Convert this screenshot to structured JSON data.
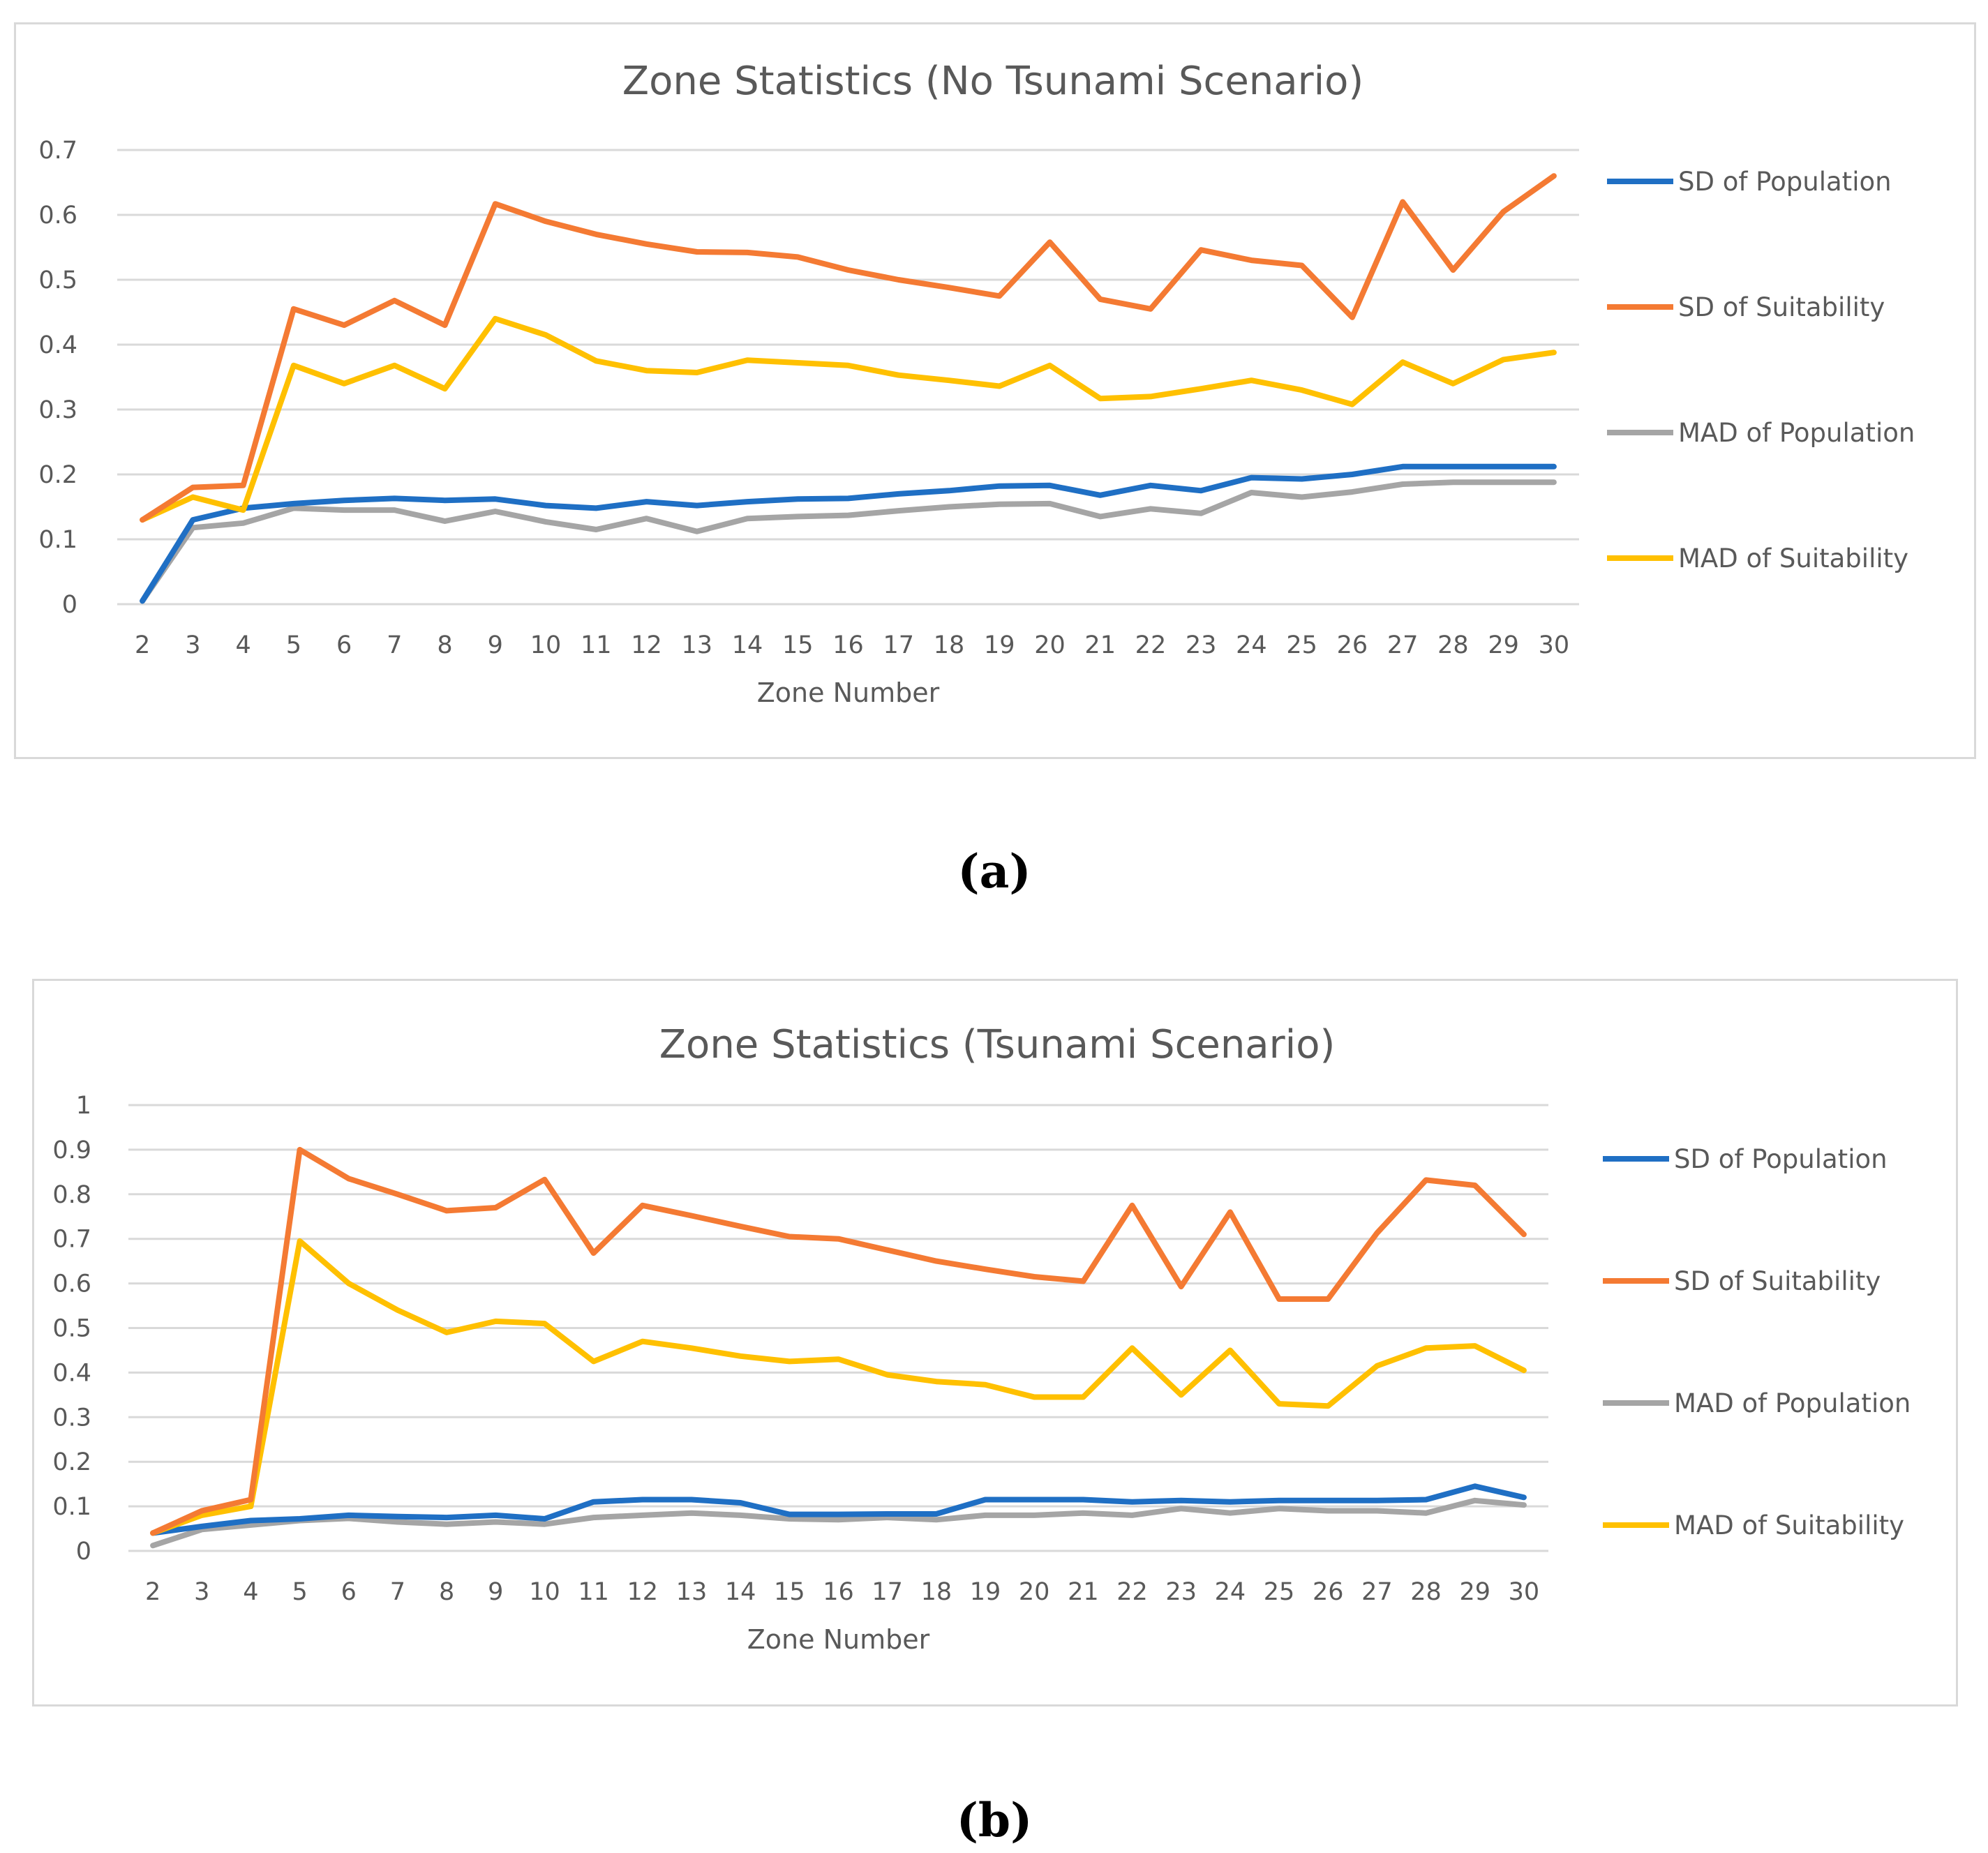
{
  "captions": {
    "a": "(a)",
    "b": "(b)"
  },
  "colors": {
    "sd_population": "#1f6fc4",
    "sd_suitability": "#f47a33",
    "mad_population": "#a5a5a5",
    "mad_suitability": "#ffc000",
    "grid": "#d9d9d9",
    "text": "#595959"
  },
  "chart_data": [
    {
      "type": "line",
      "title": "Zone Statistics (No Tsunami Scenario)",
      "xlabel": "Zone Number",
      "ylabel": "",
      "ylim": [
        0,
        0.7
      ],
      "yticks": [
        "0",
        "0.1",
        "0.2",
        "0.3",
        "0.4",
        "0.5",
        "0.6",
        "0.7"
      ],
      "categories": [
        "2",
        "3",
        "4",
        "5",
        "6",
        "7",
        "8",
        "9",
        "10",
        "11",
        "12",
        "13",
        "14",
        "15",
        "16",
        "17",
        "18",
        "19",
        "20",
        "21",
        "22",
        "23",
        "24",
        "25",
        "26",
        "27",
        "28",
        "29",
        "30"
      ],
      "legend_position": "right",
      "series": [
        {
          "name": "SD of Population",
          "color": "#1f6fc4",
          "values": [
            0.005,
            0.13,
            0.148,
            0.155,
            0.16,
            0.163,
            0.16,
            0.162,
            0.152,
            0.148,
            0.158,
            0.152,
            0.158,
            0.162,
            0.163,
            0.17,
            0.175,
            0.182,
            0.183,
            0.168,
            0.183,
            0.175,
            0.195,
            0.193,
            0.2,
            0.212,
            0.212,
            0.212,
            0.212
          ]
        },
        {
          "name": "SD of Suitability",
          "color": "#f47a33",
          "values": [
            0.13,
            0.18,
            0.183,
            0.455,
            0.43,
            0.468,
            0.43,
            0.617,
            0.59,
            0.57,
            0.555,
            0.543,
            0.542,
            0.535,
            0.515,
            0.5,
            0.488,
            0.475,
            0.558,
            0.47,
            0.455,
            0.546,
            0.53,
            0.522,
            0.442,
            0.62,
            0.515,
            0.605,
            0.66
          ]
        },
        {
          "name": "MAD of Population",
          "color": "#a5a5a5",
          "values": [
            0.005,
            0.118,
            0.125,
            0.148,
            0.145,
            0.145,
            0.128,
            0.143,
            0.127,
            0.115,
            0.132,
            0.112,
            0.132,
            0.135,
            0.137,
            0.144,
            0.15,
            0.154,
            0.155,
            0.135,
            0.147,
            0.14,
            0.172,
            0.165,
            0.173,
            0.185,
            0.188,
            0.188,
            0.188
          ]
        },
        {
          "name": "MAD of Suitability",
          "color": "#ffc000",
          "values": [
            0.13,
            0.165,
            0.145,
            0.368,
            0.34,
            0.368,
            0.332,
            0.44,
            0.415,
            0.375,
            0.36,
            0.357,
            0.376,
            0.372,
            0.368,
            0.353,
            0.345,
            0.336,
            0.368,
            0.317,
            0.32,
            0.332,
            0.345,
            0.33,
            0.308,
            0.373,
            0.34,
            0.377,
            0.388
          ]
        }
      ]
    },
    {
      "type": "line",
      "title": "Zone Statistics (Tsunami Scenario)",
      "xlabel": "Zone Number",
      "ylabel": "",
      "ylim": [
        0,
        1
      ],
      "yticks": [
        "0",
        "0.1",
        "0.2",
        "0.3",
        "0.4",
        "0.5",
        "0.6",
        "0.7",
        "0.8",
        "0.9",
        "1"
      ],
      "categories": [
        "2",
        "3",
        "4",
        "5",
        "6",
        "7",
        "8",
        "9",
        "10",
        "11",
        "12",
        "13",
        "14",
        "15",
        "16",
        "17",
        "18",
        "19",
        "20",
        "21",
        "22",
        "23",
        "24",
        "25",
        "26",
        "27",
        "28",
        "29",
        "30"
      ],
      "legend_position": "right",
      "series": [
        {
          "name": "SD of Population",
          "color": "#1f6fc4",
          "values": [
            0.04,
            0.055,
            0.068,
            0.072,
            0.08,
            0.077,
            0.075,
            0.08,
            0.072,
            0.11,
            0.115,
            0.115,
            0.108,
            0.082,
            0.082,
            0.083,
            0.083,
            0.115,
            0.115,
            0.115,
            0.11,
            0.113,
            0.11,
            0.113,
            0.113,
            0.113,
            0.115,
            0.145,
            0.12
          ]
        },
        {
          "name": "SD of Suitability",
          "color": "#f47a33",
          "values": [
            0.04,
            0.09,
            0.115,
            0.9,
            0.835,
            0.8,
            0.763,
            0.77,
            0.833,
            0.668,
            0.775,
            0.752,
            0.728,
            0.705,
            0.7,
            0.675,
            0.65,
            0.632,
            0.615,
            0.605,
            0.775,
            0.593,
            0.76,
            0.565,
            0.565,
            0.713,
            0.832,
            0.82,
            0.71
          ]
        },
        {
          "name": "MAD of Population",
          "color": "#a5a5a5",
          "values": [
            0.012,
            0.048,
            0.058,
            0.068,
            0.073,
            0.065,
            0.06,
            0.065,
            0.06,
            0.075,
            0.08,
            0.085,
            0.08,
            0.072,
            0.07,
            0.075,
            0.07,
            0.08,
            0.08,
            0.085,
            0.08,
            0.095,
            0.085,
            0.095,
            0.09,
            0.09,
            0.085,
            0.113,
            0.103
          ]
        },
        {
          "name": "MAD of Suitability",
          "color": "#ffc000",
          "values": [
            0.04,
            0.08,
            0.1,
            0.695,
            0.6,
            0.54,
            0.49,
            0.515,
            0.51,
            0.425,
            0.47,
            0.455,
            0.437,
            0.425,
            0.43,
            0.395,
            0.38,
            0.373,
            0.345,
            0.345,
            0.455,
            0.35,
            0.45,
            0.33,
            0.325,
            0.415,
            0.455,
            0.46,
            0.405
          ]
        }
      ]
    }
  ]
}
